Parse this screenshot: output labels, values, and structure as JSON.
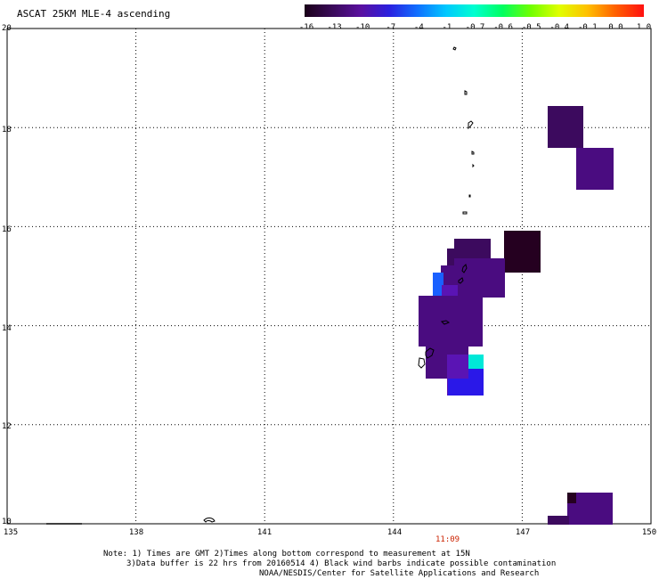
{
  "title": "ASCAT 25KM MLE-4 ascending",
  "colorbar": {
    "labels": [
      "-16",
      "-13",
      "-10",
      "-7",
      "-4",
      "-1",
      "-0.7",
      "-0.6",
      "-0.5",
      "-0.4",
      "-0.1",
      "0.0",
      "1.0"
    ],
    "colors": [
      "#1a0018",
      "#3a0a5a",
      "#5a10a0",
      "#2a20e0",
      "#1070ff",
      "#00c8ff",
      "#00ffd0",
      "#00ff60",
      "#70ff00",
      "#e0ff00",
      "#ffc000",
      "#ff6000",
      "#ff1010"
    ]
  },
  "axes": {
    "lon_ticks": [
      "135",
      "138",
      "141",
      "144",
      "147",
      "150"
    ],
    "lat_ticks": [
      "20",
      "18",
      "16",
      "14",
      "12",
      "10"
    ]
  },
  "pass_time": "11:09",
  "notes": {
    "line1": "Note: 1) Times are GMT 2)Times along bottom correspond to measurement at 15N",
    "line2": "3)Data buffer is 22 hrs from 20160514 4) Black wind barbs indicate possible contamination",
    "line3": "NOAA/NESDIS/Center for Satellite Applications and Research"
  },
  "palette": {
    "dark": "#250020",
    "purple": "#3c0a5e",
    "purple_mid": "#4a0c80",
    "violet": "#5a14b4",
    "blue": "#2a18e8",
    "light_blue": "#1a60ff",
    "cyan": "#00e8d8"
  }
}
